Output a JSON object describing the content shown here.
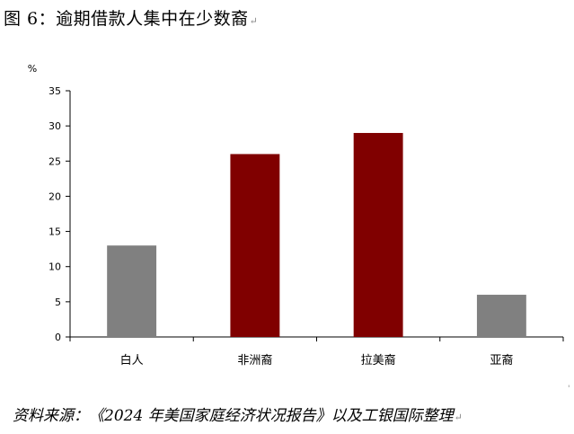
{
  "title": "图 6：逾期借款人集中在少数裔",
  "paragraph_mark": "↵",
  "source": "资料来源：《2024 年美国家庭经济状况报告》以及工银国际整理",
  "chart_data": {
    "type": "bar",
    "title": "图 6：逾期借款人集中在少数裔",
    "unit": "%",
    "categories": [
      "白人",
      "非洲裔",
      "拉美裔",
      "亚裔"
    ],
    "values": [
      13,
      26,
      29,
      6
    ],
    "bar_colors": [
      "#808080",
      "#800000",
      "#800000",
      "#808080"
    ],
    "ylim": [
      0,
      35
    ],
    "yticks": [
      0,
      5,
      10,
      15,
      20,
      25,
      30,
      35
    ],
    "xlabel": "",
    "ylabel": "",
    "grid": false,
    "legend": "none"
  }
}
